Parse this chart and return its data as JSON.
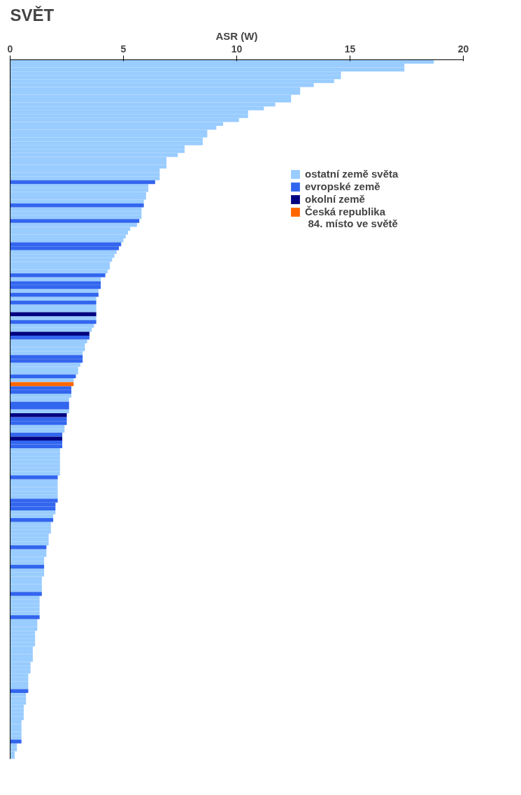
{
  "chart_data": {
    "type": "bar",
    "orientation": "horizontal",
    "title": "SVĚT",
    "xlabel": "ASR (W)",
    "categories": [
      null,
      null,
      null,
      null,
      null,
      null,
      null,
      null,
      null,
      null,
      null,
      null,
      null,
      null,
      null,
      null,
      null,
      null,
      null,
      null,
      null,
      null,
      null,
      null,
      null,
      null,
      null,
      null,
      null,
      null,
      null,
      null,
      null,
      null,
      null,
      null,
      null,
      null,
      null,
      null,
      null,
      null,
      null,
      null,
      null,
      null,
      null,
      null,
      null,
      null,
      null,
      null,
      null,
      null,
      null,
      null,
      null,
      null,
      null,
      null,
      null,
      null,
      null,
      null,
      null,
      null,
      null,
      null,
      null,
      null,
      null,
      null,
      null,
      null,
      null,
      null,
      null,
      null,
      null,
      null,
      null,
      null,
      null,
      null,
      null,
      null,
      null,
      null,
      null,
      null,
      null,
      null,
      null,
      null,
      null,
      null,
      null,
      null,
      null,
      null,
      null,
      null,
      null,
      null,
      null,
      null,
      null,
      null,
      null,
      null,
      null,
      null,
      null,
      null,
      null,
      null,
      null,
      null,
      null,
      null,
      null,
      null,
      null,
      null,
      null,
      null,
      null,
      null,
      null,
      null,
      null,
      null,
      null,
      null,
      null,
      null,
      null,
      null,
      null,
      null,
      null,
      null,
      null,
      null,
      null,
      null,
      null,
      null,
      null,
      null,
      null,
      null,
      null,
      null,
      null,
      null,
      null,
      null,
      null,
      null,
      null,
      null,
      null,
      null,
      null,
      null,
      null,
      null,
      null,
      null,
      null,
      null,
      null,
      null,
      null,
      null,
      null,
      null,
      null,
      null
    ],
    "series": [
      {
        "name": "ostatní země světa",
        "color": "#99ccff",
        "values": [
          18.7,
          17.4,
          17.4,
          14.6,
          14.6,
          14.3,
          13.4,
          12.8,
          12.8,
          12.4,
          12.4,
          11.7,
          11.2,
          10.5,
          10.5,
          10.1,
          9.4,
          9.1,
          8.7,
          8.7,
          8.5,
          8.5,
          7.7,
          7.7,
          7.4,
          6.9,
          6.9,
          6.9,
          6.6,
          6.6,
          6.6,
          null,
          6.1,
          6.1,
          6.0,
          6.0,
          5.9,
          null,
          5.8,
          5.8,
          5.8,
          null,
          5.6,
          5.3,
          5.2,
          5.1,
          5.0,
          null,
          null,
          4.7,
          4.6,
          4.5,
          4.4,
          4.4,
          4.3,
          null,
          4.0,
          null,
          null,
          3.9,
          null,
          3.8,
          null,
          3.8,
          3.8,
          null,
          3.8,
          null,
          3.7,
          3.6,
          null,
          null,
          3.4,
          3.3,
          3.3,
          3.2,
          null,
          null,
          3.1,
          3.0,
          3.0,
          null,
          2.8,
          null,
          null,
          null,
          2.7,
          2.6,
          null,
          null,
          2.6,
          null,
          null,
          null,
          2.4,
          2.4,
          null,
          null,
          null,
          null,
          2.2,
          2.2,
          2.2,
          2.2,
          2.2,
          2.2,
          2.2,
          null,
          2.1,
          2.1,
          2.1,
          2.1,
          2.1,
          null,
          null,
          null,
          2.0,
          1.9,
          null,
          1.8,
          1.8,
          1.8,
          1.7,
          1.7,
          1.7,
          null,
          1.6,
          1.6,
          1.5,
          1.5,
          null,
          1.5,
          1.5,
          1.4,
          1.4,
          1.4,
          1.4,
          null,
          1.3,
          1.3,
          1.3,
          1.3,
          1.3,
          null,
          1.2,
          1.2,
          1.2,
          1.1,
          1.1,
          1.1,
          1.1,
          1.0,
          1.0,
          1.0,
          1.0,
          0.9,
          0.9,
          0.9,
          0.8,
          0.8,
          0.8,
          0.8,
          null,
          0.7,
          0.7,
          0.7,
          0.6,
          0.6,
          0.6,
          0.6,
          0.5,
          0.5,
          0.5,
          0.5,
          0.5,
          null,
          0.3,
          0.3,
          0.2,
          0.2
        ]
      },
      {
        "name": "evropské země",
        "color": "#3366ee",
        "values": [
          null,
          null,
          null,
          null,
          null,
          null,
          null,
          null,
          null,
          null,
          null,
          null,
          null,
          null,
          null,
          null,
          null,
          null,
          null,
          null,
          null,
          null,
          null,
          null,
          null,
          null,
          null,
          null,
          null,
          null,
          null,
          6.4,
          null,
          null,
          null,
          null,
          null,
          5.9,
          null,
          null,
          null,
          5.7,
          null,
          null,
          null,
          null,
          null,
          4.9,
          4.8,
          null,
          null,
          null,
          null,
          null,
          null,
          4.2,
          null,
          4.0,
          4.0,
          null,
          3.9,
          null,
          3.8,
          null,
          null,
          null,
          null,
          3.8,
          null,
          null,
          null,
          3.5,
          null,
          null,
          null,
          null,
          3.2,
          3.2,
          null,
          null,
          null,
          2.9,
          null,
          null,
          2.7,
          2.7,
          null,
          null,
          2.6,
          2.6,
          null,
          null,
          2.5,
          2.5,
          null,
          null,
          2.3,
          null,
          2.3,
          2.3,
          null,
          null,
          null,
          null,
          null,
          null,
          null,
          2.1,
          null,
          null,
          null,
          null,
          null,
          2.1,
          2.0,
          2.0,
          null,
          null,
          1.9,
          null,
          null,
          null,
          null,
          null,
          null,
          1.6,
          null,
          null,
          null,
          null,
          1.5,
          null,
          null,
          null,
          null,
          null,
          null,
          1.4,
          null,
          null,
          null,
          null,
          null,
          1.3,
          null,
          null,
          null,
          null,
          null,
          null,
          null,
          null,
          null,
          null,
          null,
          null,
          null,
          null,
          null,
          null,
          null,
          null,
          0.8,
          null,
          null,
          null,
          null,
          null,
          null,
          null,
          null,
          null,
          null,
          null,
          null,
          0.5,
          null,
          null,
          null,
          null
        ]
      },
      {
        "name": "okolní země",
        "color": "#000080",
        "values": [
          null,
          null,
          null,
          null,
          null,
          null,
          null,
          null,
          null,
          null,
          null,
          null,
          null,
          null,
          null,
          null,
          null,
          null,
          null,
          null,
          null,
          null,
          null,
          null,
          null,
          null,
          null,
          null,
          null,
          null,
          null,
          null,
          null,
          null,
          null,
          null,
          null,
          null,
          null,
          null,
          null,
          null,
          null,
          null,
          null,
          null,
          null,
          null,
          null,
          null,
          null,
          null,
          null,
          null,
          null,
          null,
          null,
          null,
          null,
          null,
          null,
          null,
          null,
          null,
          null,
          3.8,
          null,
          null,
          null,
          null,
          3.5,
          null,
          null,
          null,
          null,
          null,
          null,
          null,
          null,
          null,
          null,
          null,
          null,
          null,
          null,
          null,
          null,
          null,
          null,
          null,
          null,
          2.5,
          null,
          null,
          null,
          null,
          null,
          2.3,
          null,
          null,
          null,
          null,
          null,
          null,
          null,
          null,
          null,
          null,
          null,
          null,
          null,
          null,
          null,
          null,
          null,
          null,
          null,
          null,
          null,
          null,
          null,
          null,
          null,
          null,
          null,
          null,
          null,
          null,
          null,
          null,
          null,
          null,
          null,
          null,
          null,
          null,
          null,
          null,
          null,
          null,
          null,
          null,
          null,
          null,
          null,
          null,
          null,
          null,
          null,
          null,
          null,
          null,
          null,
          null,
          null,
          null,
          null,
          null,
          null,
          null,
          null,
          null,
          null,
          null,
          null,
          null,
          null,
          null,
          null,
          null,
          null,
          null,
          null,
          null,
          null,
          null,
          null,
          null,
          null,
          null
        ]
      },
      {
        "name": "Česká republika",
        "color": "#ff6600",
        "values": [
          null,
          null,
          null,
          null,
          null,
          null,
          null,
          null,
          null,
          null,
          null,
          null,
          null,
          null,
          null,
          null,
          null,
          null,
          null,
          null,
          null,
          null,
          null,
          null,
          null,
          null,
          null,
          null,
          null,
          null,
          null,
          null,
          null,
          null,
          null,
          null,
          null,
          null,
          null,
          null,
          null,
          null,
          null,
          null,
          null,
          null,
          null,
          null,
          null,
          null,
          null,
          null,
          null,
          null,
          null,
          null,
          null,
          null,
          null,
          null,
          null,
          null,
          null,
          null,
          null,
          null,
          null,
          null,
          null,
          null,
          null,
          null,
          null,
          null,
          null,
          null,
          null,
          null,
          null,
          null,
          null,
          null,
          null,
          2.8,
          null,
          null,
          null,
          null,
          null,
          null,
          null,
          null,
          null,
          null,
          null,
          null,
          null,
          null,
          null,
          null,
          null,
          null,
          null,
          null,
          null,
          null,
          null,
          null,
          null,
          null,
          null,
          null,
          null,
          null,
          null,
          null,
          null,
          null,
          null,
          null,
          null,
          null,
          null,
          null,
          null,
          null,
          null,
          null,
          null,
          null,
          null,
          null,
          null,
          null,
          null,
          null,
          null,
          null,
          null,
          null,
          null,
          null,
          null,
          null,
          null,
          null,
          null,
          null,
          null,
          null,
          null,
          null,
          null,
          null,
          null,
          null,
          null,
          null,
          null,
          null,
          null,
          null,
          null,
          null,
          null,
          null,
          null,
          null,
          null,
          null,
          null,
          null,
          null,
          null,
          null,
          null,
          null,
          null,
          null,
          null
        ]
      }
    ],
    "xlim": [
      0,
      20
    ],
    "xticks": [
      0,
      5,
      10,
      15,
      20
    ],
    "grid": false,
    "legend": "right",
    "tick_labels": "x",
    "annotations": [
      "84. místo ve světě"
    ]
  }
}
